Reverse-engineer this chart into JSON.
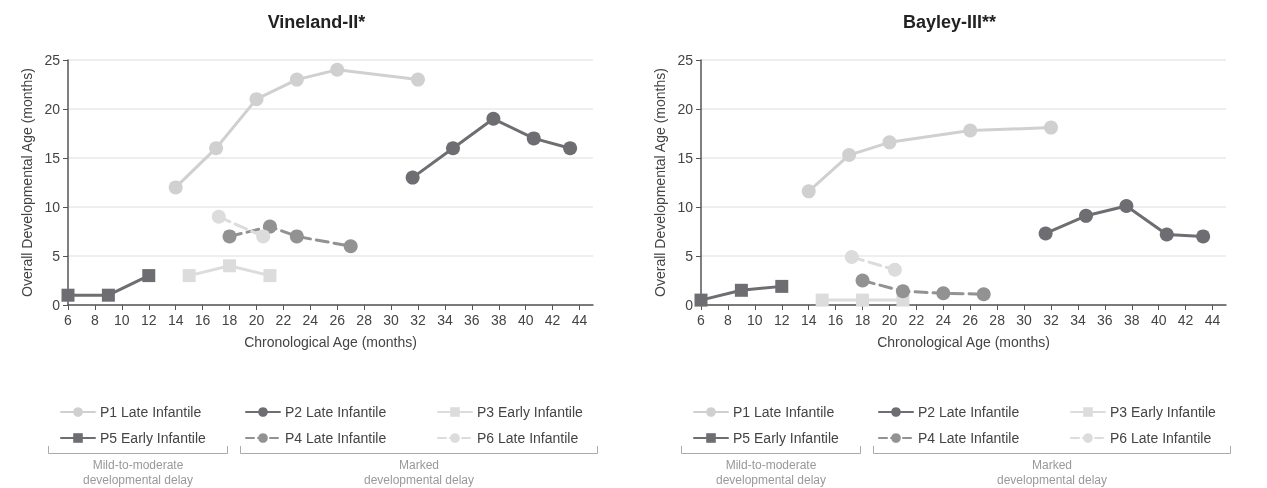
{
  "chart_data": [
    {
      "type": "line",
      "title": "Vineland-II*",
      "xlabel": "Chronological Age (months)",
      "ylabel": "Overall Developmental Age (months)",
      "xlim": [
        6,
        45
      ],
      "xticks": [
        6,
        8,
        10,
        12,
        14,
        16,
        18,
        20,
        22,
        24,
        26,
        28,
        30,
        32,
        34,
        36,
        38,
        40,
        42,
        44
      ],
      "ylim": [
        0,
        25
      ],
      "yticks": [
        0,
        5,
        10,
        15,
        20,
        25
      ],
      "grid": "y",
      "legend": "bottom",
      "annotations": [
        "Mild-to-moderate\ndevelopmental delay",
        "Marked\ndevelopmental delay"
      ],
      "series": [
        {
          "name": "P1 Late Infantile",
          "color": "#d0d0d0",
          "marker": "circle",
          "line_style": "solid",
          "x": [
            14,
            17,
            20,
            23,
            26,
            32
          ],
          "values": [
            12,
            16,
            21,
            23,
            24,
            23
          ]
        },
        {
          "name": "P2 Late Infantile",
          "color": "#6e6e72",
          "marker": "circle",
          "line_style": "solid",
          "x": [
            31.6,
            34.6,
            37.6,
            40.6,
            43.3
          ],
          "values": [
            13,
            16,
            19,
            17,
            16
          ]
        },
        {
          "name": "P3 Early Infantile",
          "color": "#dcdcdc",
          "marker": "square",
          "line_style": "solid",
          "x": [
            15,
            18,
            21
          ],
          "values": [
            3,
            4,
            3
          ]
        },
        {
          "name": "P5 Early Infantile",
          "color": "#6e6e72",
          "marker": "square",
          "line_style": "solid",
          "x": [
            6,
            9,
            12
          ],
          "values": [
            1,
            1,
            3
          ]
        },
        {
          "name": "P4 Late Infantile",
          "color": "#929292",
          "marker": "circle",
          "line_style": "dashed",
          "x": [
            18,
            21,
            23,
            27
          ],
          "values": [
            7,
            8,
            7,
            6
          ]
        },
        {
          "name": "P6 Late Infantile",
          "color": "#dcdcdc",
          "marker": "circle",
          "line_style": "dashed",
          "x": [
            17.2,
            20.5
          ],
          "values": [
            9,
            7
          ]
        }
      ]
    },
    {
      "type": "line",
      "title": "Bayley-III**",
      "xlabel": "Chronological Age (months)",
      "ylabel": "Overall Developmental Age (months)",
      "xlim": [
        6,
        45
      ],
      "xticks": [
        6,
        8,
        10,
        12,
        14,
        16,
        18,
        20,
        22,
        24,
        26,
        28,
        30,
        32,
        34,
        36,
        38,
        40,
        42,
        44
      ],
      "ylim": [
        0,
        25
      ],
      "yticks": [
        0,
        5,
        10,
        15,
        20,
        25
      ],
      "grid": "y",
      "legend": "bottom",
      "annotations": [
        "Mild-to-moderate\ndevelopmental delay",
        "Marked\ndevelopmental delay"
      ],
      "series": [
        {
          "name": "P1 Late Infantile",
          "color": "#d0d0d0",
          "marker": "circle",
          "line_style": "solid",
          "x": [
            14,
            17,
            20,
            26,
            32
          ],
          "values": [
            11.6,
            15.3,
            16.6,
            17.8,
            18.1
          ]
        },
        {
          "name": "P2 Late Infantile",
          "color": "#6e6e72",
          "marker": "circle",
          "line_style": "solid",
          "x": [
            31.6,
            34.6,
            37.6,
            40.6,
            43.3
          ],
          "values": [
            7.3,
            9.1,
            10.1,
            7.2,
            7.0
          ]
        },
        {
          "name": "P3 Early Infantile",
          "color": "#dcdcdc",
          "marker": "square",
          "line_style": "solid",
          "x": [
            15,
            18,
            21
          ],
          "values": [
            0.5,
            0.5,
            0.5
          ]
        },
        {
          "name": "P5 Early Infantile",
          "color": "#6e6e72",
          "marker": "square",
          "line_style": "solid",
          "x": [
            6,
            9,
            12
          ],
          "values": [
            0.5,
            1.5,
            1.9
          ]
        },
        {
          "name": "P4 Late Infantile",
          "color": "#929292",
          "marker": "circle",
          "line_style": "dashed",
          "x": [
            18,
            21,
            24,
            27
          ],
          "values": [
            2.5,
            1.4,
            1.2,
            1.1
          ]
        },
        {
          "name": "P6 Late Infantile",
          "color": "#dcdcdc",
          "marker": "circle",
          "line_style": "dashed",
          "x": [
            17.2,
            20.4
          ],
          "values": [
            4.9,
            3.6
          ]
        }
      ]
    }
  ]
}
